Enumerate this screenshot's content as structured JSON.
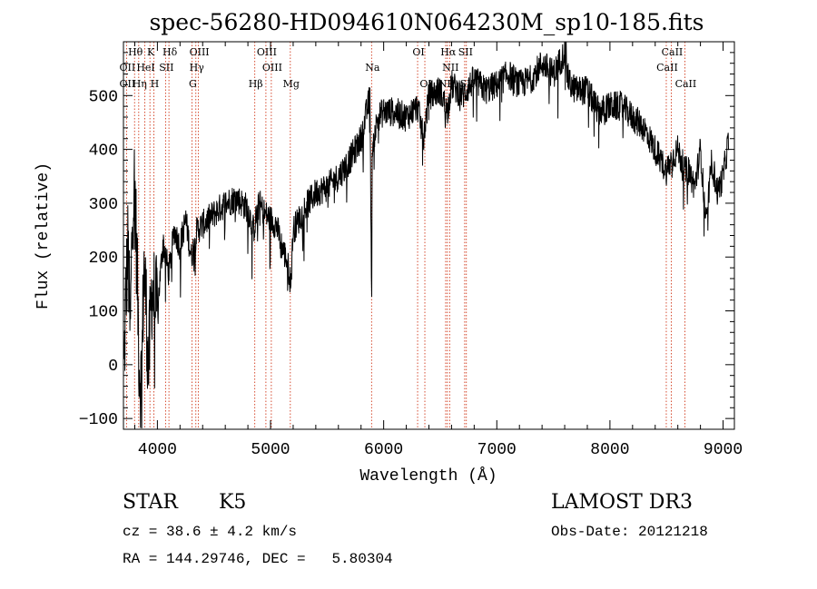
{
  "chart_data": {
    "type": "line",
    "title": "spec-56280-HD094610N064230M_sp10-185.fits",
    "xlabel": "Wavelength (Å)",
    "ylabel": "Flux (relative)",
    "xlim": [
      3700,
      9100
    ],
    "ylim": [
      -120,
      600
    ],
    "x_ticks": [
      4000,
      5000,
      6000,
      7000,
      8000,
      9000
    ],
    "y_ticks": [
      -100,
      0,
      100,
      200,
      300,
      400,
      500
    ],
    "x_tick_labels": [
      "4000",
      "5000",
      "6000",
      "7000",
      "8000",
      "9000"
    ],
    "y_tick_labels": [
      "−100",
      "0",
      "100",
      "200",
      "300",
      "400",
      "500"
    ],
    "series": [
      {
        "x": [
          3705,
          3720,
          3740,
          3760,
          3780,
          3800,
          3820,
          3840,
          3860,
          3880,
          3900,
          3920,
          3950,
          4000,
          4050,
          4100,
          4150,
          4200,
          4250,
          4300,
          4350,
          4400,
          4500,
          4600,
          4700,
          4800,
          4850,
          4900,
          4950,
          5000,
          5050,
          5100,
          5150,
          5180,
          5200,
          5250,
          5300,
          5400,
          5500,
          5600,
          5700,
          5800,
          5850,
          5880,
          5893,
          5900,
          5950,
          6000,
          6100,
          6200,
          6300,
          6350,
          6400,
          6500,
          6562,
          6600,
          6700,
          6800,
          6900,
          7000,
          7100,
          7200,
          7300,
          7400,
          7500,
          7600,
          7610,
          7620,
          7650,
          7700,
          7800,
          7900,
          8000,
          8100,
          8200,
          8300,
          8400,
          8498,
          8542,
          8600,
          8662,
          8700,
          8750,
          8800,
          8850,
          8900,
          8950,
          9000,
          9050
        ],
        "y": [
          -20,
          120,
          220,
          50,
          300,
          340,
          180,
          0,
          -40,
          180,
          120,
          -20,
          140,
          100,
          230,
          170,
          250,
          220,
          270,
          200,
          250,
          260,
          280,
          300,
          310,
          290,
          250,
          300,
          280,
          270,
          260,
          220,
          190,
          150,
          250,
          270,
          290,
          320,
          330,
          350,
          380,
          420,
          470,
          500,
          100,
          410,
          460,
          470,
          470,
          460,
          480,
          420,
          500,
          510,
          470,
          520,
          500,
          530,
          510,
          520,
          540,
          520,
          530,
          560,
          540,
          580,
          620,
          540,
          520,
          510,
          510,
          470,
          480,
          480,
          460,
          440,
          400,
          360,
          380,
          400,
          360,
          360,
          330,
          400,
          260,
          380,
          320,
          350,
          420
        ],
        "noise": 28
      }
    ],
    "line_labels": [
      {
        "name": "Hθ",
        "x": 3798,
        "row": 0
      },
      {
        "name": "K",
        "x": 3934,
        "row": 0
      },
      {
        "name": "Hδ",
        "x": 4102,
        "row": 0
      },
      {
        "name": "OIII",
        "x": 4363,
        "row": 0
      },
      {
        "name": "OIII",
        "x": 4959,
        "row": 0
      },
      {
        "name": "OI",
        "x": 6300,
        "row": 0
      },
      {
        "name": "Hα",
        "x": 6563,
        "row": 0
      },
      {
        "name": "SII",
        "x": 6716,
        "row": 0
      },
      {
        "name": "CaII",
        "x": 8542,
        "row": 0
      },
      {
        "name": "OII",
        "x": 3727,
        "row": 1
      },
      {
        "name": "HeI",
        "x": 3889,
        "row": 1
      },
      {
        "name": "SII",
        "x": 4072,
        "row": 1
      },
      {
        "name": "Hγ",
        "x": 4340,
        "row": 1
      },
      {
        "name": "OIII",
        "x": 5007,
        "row": 1
      },
      {
        "name": "Na",
        "x": 5893,
        "row": 1
      },
      {
        "name": "NII",
        "x": 6583,
        "row": 1
      },
      {
        "name": "CaII",
        "x": 8498,
        "row": 1
      },
      {
        "name": "OII",
        "x": 3727,
        "row": 2
      },
      {
        "name": "Hη",
        "x": 3835,
        "row": 2
      },
      {
        "name": "H",
        "x": 3968,
        "row": 2
      },
      {
        "name": "G",
        "x": 4305,
        "row": 2
      },
      {
        "name": "Hβ",
        "x": 4861,
        "row": 2
      },
      {
        "name": "Mg",
        "x": 5175,
        "row": 2
      },
      {
        "name": "OI",
        "x": 6364,
        "row": 2
      },
      {
        "name": "NII",
        "x": 6548,
        "row": 2
      },
      {
        "name": "SII",
        "x": 6731,
        "row": 2
      },
      {
        "name": "CaII",
        "x": 8662,
        "row": 2
      }
    ],
    "marker_lines": [
      3727,
      3798,
      3835,
      3889,
      3934,
      3968,
      4072,
      4102,
      4305,
      4340,
      4363,
      4861,
      4959,
      5007,
      5175,
      5893,
      6300,
      6364,
      6548,
      6563,
      6583,
      6716,
      6731,
      8498,
      8542,
      8662
    ],
    "colors": {
      "spectrum": "#000000",
      "markers": "#cc2200",
      "axes": "#000000"
    }
  },
  "info": {
    "class": "STAR",
    "subclass": "K5",
    "survey": "LAMOST DR3",
    "cz": "cz = 38.6 ± 4.2 km/s",
    "obs_date": "Obs-Date: 20121218",
    "coords": "RA = 144.29746, DEC =   5.80304"
  }
}
